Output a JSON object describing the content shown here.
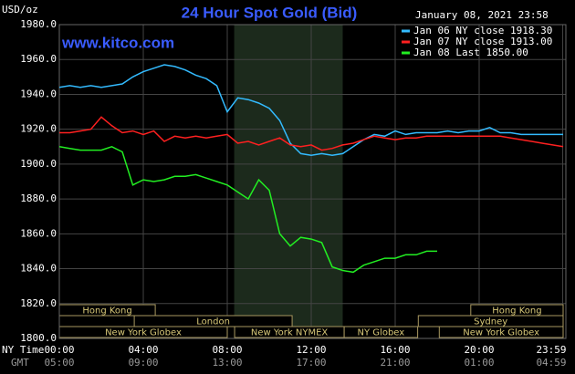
{
  "chart_data": {
    "type": "line",
    "title": "24 Hour Spot Gold (Bid)",
    "watermark": "www.kitco.com",
    "date": "January 08, 2021 23:58",
    "y_label": "USD/oz",
    "x_label": "NY Time",
    "x2_label": "GMT",
    "grid": true,
    "legend": "top-right",
    "xlim": [
      0,
      24
    ],
    "xticks": [
      {
        "value": 0,
        "label": "00:00"
      },
      {
        "value": 4,
        "label": "04:00"
      },
      {
        "value": 8,
        "label": "08:00"
      },
      {
        "value": 12,
        "label": "12:00"
      },
      {
        "value": 16,
        "label": "16:00"
      },
      {
        "value": 20,
        "label": "20:00"
      },
      {
        "value": 23.98,
        "label": "23:59"
      }
    ],
    "x2ticklabels": [
      "05:00",
      "09:00",
      "13:00",
      "17:00",
      "21:00",
      "01:00",
      "04:59"
    ],
    "ylim": [
      1800,
      1980
    ],
    "yticks": [
      {
        "value": 1800,
        "label": "1800.0"
      },
      {
        "value": 1820,
        "label": "1820.0"
      },
      {
        "value": 1840,
        "label": "1840.0"
      },
      {
        "value": 1860,
        "label": "1860.0"
      },
      {
        "value": 1880,
        "label": "1880.0"
      },
      {
        "value": 1900,
        "label": "1900.0"
      },
      {
        "value": 1920,
        "label": "1920.0"
      },
      {
        "value": 1940,
        "label": "1940.0"
      },
      {
        "value": 1960,
        "label": "1960.0"
      },
      {
        "value": 1980,
        "label": "1980.0"
      }
    ],
    "shaded": [
      8.33,
      13.5
    ],
    "session_rows": [
      [
        {
          "label": "Hong Kong",
          "start": 0,
          "end": 4.57
        },
        {
          "label": "Hong Kong",
          "start": 19.6,
          "end": 24
        }
      ],
      [
        {
          "label": "London",
          "start": 3.57,
          "end": 11.09
        },
        {
          "label": "Sydney",
          "start": 17.1,
          "end": 24
        }
      ],
      [
        {
          "label": "New York Globex",
          "start": 0,
          "end": 8
        },
        {
          "label": "New York NYMEX",
          "start": 8.35,
          "end": 13.57
        },
        {
          "label": "NY Globex",
          "start": 13.57,
          "end": 17.07
        },
        {
          "label": "New York Globex",
          "start": 18.1,
          "end": 24
        }
      ]
    ],
    "x": [
      0,
      0.5,
      1,
      1.5,
      2,
      2.5,
      3,
      3.5,
      4,
      4.5,
      5,
      5.5,
      6,
      6.5,
      7,
      7.5,
      8,
      8.5,
      9,
      9.5,
      10,
      10.5,
      11,
      11.5,
      12,
      12.5,
      13,
      13.5,
      14,
      14.5,
      15,
      15.5,
      16,
      16.5,
      17,
      17.5,
      18,
      18.5,
      19,
      19.5,
      20,
      20.5,
      21,
      21.5,
      22,
      22.5,
      23,
      23.5,
      24
    ],
    "series": [
      {
        "name": "Jan 06 NY close 1918.30",
        "color": "#33bbff",
        "values": [
          1944,
          1945,
          1944,
          1945,
          1944,
          1945,
          1946,
          1950,
          1953,
          1955,
          1957,
          1956,
          1954,
          1951,
          1949,
          1945,
          1930,
          1938,
          1937,
          1935,
          1932,
          1925,
          1912,
          1906,
          1905,
          1906,
          1905,
          1906,
          1910,
          1914,
          1917,
          1916,
          1919,
          1917,
          1918,
          1918,
          1918,
          1919,
          1918,
          1919,
          1919,
          1921,
          1918,
          1918,
          1917,
          1917,
          1917,
          1917,
          1917
        ]
      },
      {
        "name": "Jan 07 NY close 1913.00",
        "color": "#ff2020",
        "values": [
          1918,
          1918,
          1919,
          1920,
          1927,
          1922,
          1918,
          1919,
          1917,
          1919,
          1913,
          1916,
          1915,
          1916,
          1915,
          1916,
          1917,
          1912,
          1913,
          1911,
          1913,
          1915,
          1911,
          1910,
          1911,
          1908,
          1909,
          1911,
          1912,
          1914,
          1916,
          1915,
          1914,
          1915,
          1915,
          1916,
          1916,
          1916,
          1916,
          1916,
          1916,
          1916,
          1916,
          1915,
          1914,
          1913,
          1912,
          1911,
          1910
        ]
      },
      {
        "name": "Jan 08 Last 1850.00",
        "color": "#22ee22",
        "values": [
          1910,
          1909,
          1908,
          1908,
          1908,
          1910,
          1907,
          1888,
          1891,
          1890,
          1891,
          1893,
          1893,
          1894,
          1892,
          1890,
          1888,
          1884,
          1880,
          1891,
          1885,
          1860,
          1853,
          1858,
          1857,
          1855,
          1841,
          1839,
          1838,
          1842,
          1844,
          1846,
          1846,
          1848,
          1848,
          1850,
          1850,
          null,
          null,
          null,
          null,
          null,
          null,
          null,
          null,
          null,
          null,
          null,
          null
        ]
      }
    ]
  }
}
